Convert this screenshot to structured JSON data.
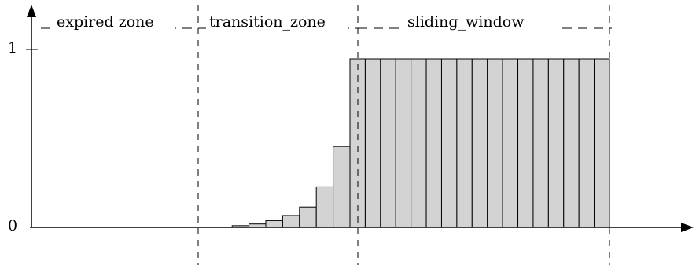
{
  "axis": {
    "y_top_label": "1",
    "y_bottom_label": "0"
  },
  "zones": [
    {
      "label": "expired zone"
    },
    {
      "label": "transition_zone"
    },
    {
      "label": "sliding_window"
    }
  ],
  "chart_data": {
    "type": "bar",
    "ylim": [
      0,
      1
    ],
    "transition_values": [
      0.0,
      0.0,
      0.0,
      0.0,
      0.01,
      0.02,
      0.04,
      0.07,
      0.12,
      0.24,
      0.48
    ],
    "window_value": 1,
    "window_bar_count": 17
  },
  "colors": {
    "bar_fill": "#d3d3d3",
    "stroke": "#000000"
  }
}
